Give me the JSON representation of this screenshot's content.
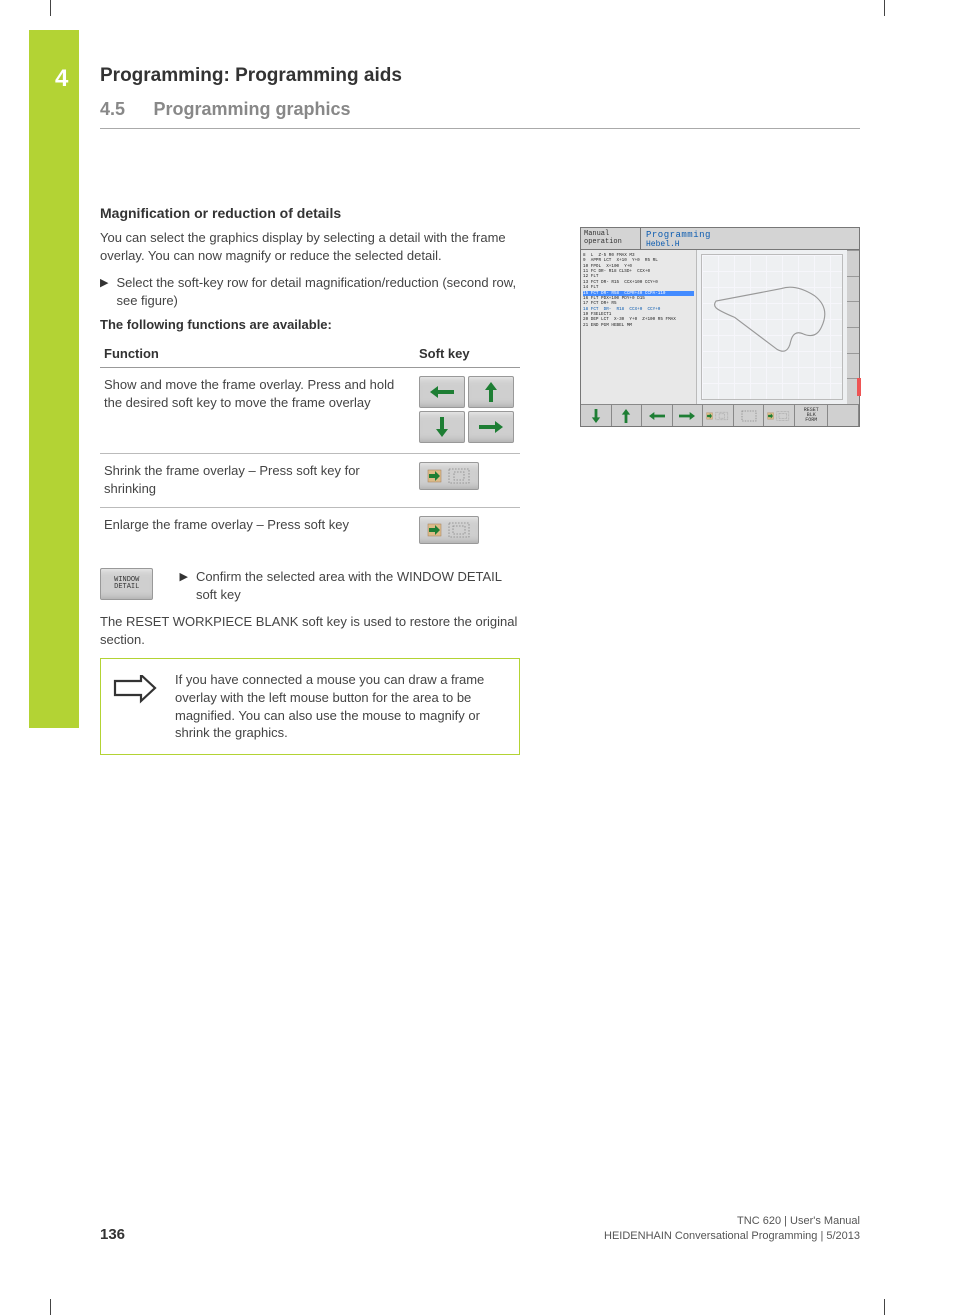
{
  "chapter": {
    "num": "4",
    "title": "Programming: Programming aids"
  },
  "section": {
    "num": "4.5",
    "title": "Programming graphics"
  },
  "subhead": "Magnification or reduction of details",
  "intro": "You can select the graphics display by selecting a detail with the frame overlay. You can now magnify or reduce the selected detail.",
  "bullet1": "Select the soft-key row for detail magnification/reduction (second row, see figure)",
  "func_header": "The following functions are available:",
  "table": {
    "col1": "Function",
    "col2": "Soft key",
    "rows": [
      {
        "func": "Show and move the frame overlay. Press and hold the desired soft key to move the frame overlay"
      },
      {
        "func": "Shrink the frame overlay – Press soft key for shrinking"
      },
      {
        "func": "Enlarge the frame overlay – Press soft key"
      }
    ]
  },
  "window_key": {
    "l1": "WINDOW",
    "l2": "DETAIL"
  },
  "confirm": "Confirm the selected area with the WINDOW DETAIL soft key",
  "reset_text": "The RESET WORKPIECE BLANK soft key is used to restore the original section.",
  "note": "If you have connected a mouse you can draw a frame overlay with the left mouse button for the area to be magnified. You can also use the mouse to magnify or shrink the graphics.",
  "screenshot": {
    "mode": "Manual operation",
    "program": "Programming",
    "file": "Hebel.H",
    "reset_label": "RESET\nBLK\nFORM",
    "code_lines": [
      "8  L  Z-5 R0 FMAX M3",
      "9  APPR LCT  X+10  Y+0  R5 RL",
      "10 FPOL  X+100  Y+0",
      "11 FC DR- R18 CLSD+  CCX+0",
      "12 FLT",
      "13 FCT DR- R15  CCX+100 CCY+0",
      "14 FLT",
      "15 FCT DR- R58  CCPR+40 CCPA-110",
      "16 FLT PDX+100 PDY+0 D15",
      "17 FCT DR+ R5",
      "18 FCT  DR-  R18  CCX+0  CCY+0",
      "19 FSELECT1",
      "20 DEP LCT  X-30  Y+0  Z+100 R5 FMAX",
      "21 END PGM HEBEL MM"
    ],
    "highlight_index": 7,
    "blue_index": 10
  },
  "footer": {
    "page": "136",
    "line1": "TNC 620 | User's Manual",
    "line2": "HEIDENHAIN Conversational Programming | 5/2013"
  },
  "colors": {
    "accent_green": "#b3d334",
    "arrow_green": "#1e7e34",
    "link_blue": "#0b5bb0",
    "hl_blue": "#438bff"
  }
}
